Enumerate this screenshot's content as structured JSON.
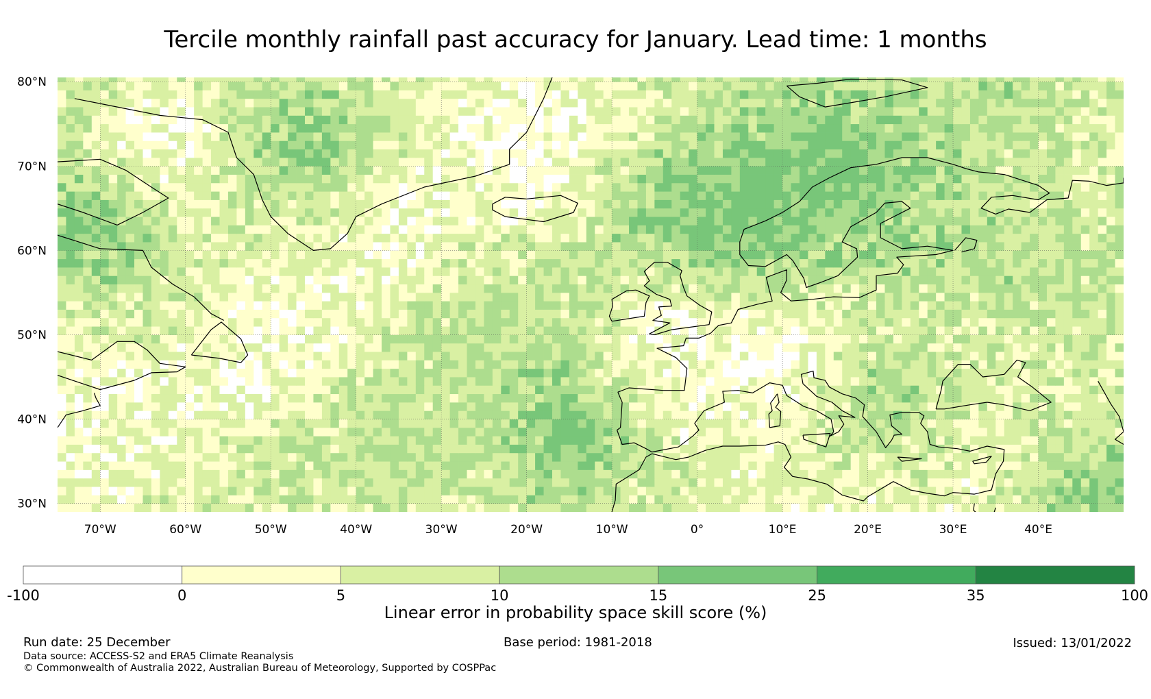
{
  "title": "Tercile monthly rainfall past accuracy for January. Lead time: 1 months",
  "map": {
    "lat_labels": [
      "80°N",
      "70°N",
      "60°N",
      "50°N",
      "40°N",
      "30°N"
    ],
    "lat_values": [
      80,
      70,
      60,
      50,
      40,
      30
    ],
    "lon_labels": [
      "70°W",
      "60°W",
      "50°W",
      "40°W",
      "30°W",
      "20°W",
      "10°W",
      "0°",
      "10°E",
      "20°E",
      "30°E",
      "40°E"
    ],
    "lon_values": [
      -70,
      -60,
      -50,
      -40,
      -30,
      -20,
      -10,
      0,
      10,
      20,
      30,
      40
    ],
    "lon_range": [
      -75,
      50
    ],
    "lat_range": [
      29,
      80.5
    ]
  },
  "colorbar": {
    "bins": [
      {
        "from": "-100",
        "to": "0",
        "color": "#ffffff"
      },
      {
        "from": "0",
        "to": "5",
        "color": "#ffffcc"
      },
      {
        "from": "5",
        "to": "10",
        "color": "#d9f0a3"
      },
      {
        "from": "10",
        "to": "15",
        "color": "#addd8e"
      },
      {
        "from": "15",
        "to": "25",
        "color": "#78c679"
      },
      {
        "from": "25",
        "to": "35",
        "color": "#41ab5d"
      },
      {
        "from": "35",
        "to": "100",
        "color": "#238443"
      }
    ],
    "tick_labels": [
      "-100",
      "0",
      "5",
      "10",
      "15",
      "25",
      "35",
      "100"
    ],
    "label": "Linear error in probability space skill score (%)"
  },
  "footer": {
    "run_date": "Run date: 25 December",
    "base_period": "Base period: 1981-2018",
    "issued": "Issued: 13/01/2022",
    "data_source": "Data source: ACCESS-S2 and ERA5 Climate Reanalysis",
    "copyright": "© Commonwealth of Australia 2022, Australian Bureau of Meteorology, Supported by COSPPac"
  },
  "colors": {
    "coastline": "#000000",
    "gridline": "#555555"
  }
}
